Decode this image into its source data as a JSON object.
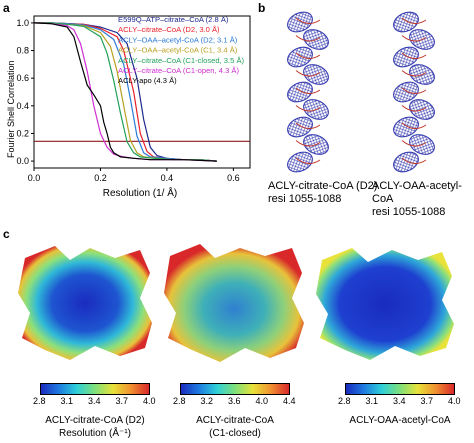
{
  "panels": {
    "a": "a",
    "b": "b",
    "c": "c"
  },
  "chart_data": {
    "type": "line",
    "title": "",
    "xlabel": "Resolution (1/ Å)",
    "ylabel": "Fourier Shell Correlation",
    "xlim": [
      0,
      0.65
    ],
    "ylim": [
      -0.05,
      1.05
    ],
    "xticks": [
      "0.0",
      "0.2",
      "0.4",
      "0.6"
    ],
    "yticks": [
      "0.0",
      "0.2",
      "0.4",
      "0.6",
      "0.8",
      "1.0"
    ],
    "threshold": 0.143,
    "threshold_color": "#8b1a1a",
    "legend_position": "top-right",
    "series": [
      {
        "name": "E599Q–ATP–citrate–CoA (2.8 Å)",
        "color": "#1f2a8c",
        "x": [
          0,
          0.05,
          0.1,
          0.15,
          0.2,
          0.25,
          0.28,
          0.31,
          0.33,
          0.35,
          0.37,
          0.4,
          0.45,
          0.5,
          0.55
        ],
        "y": [
          1.0,
          1.0,
          0.995,
          0.99,
          0.97,
          0.93,
          0.85,
          0.6,
          0.3,
          0.1,
          0.04,
          0.02,
          0.01,
          0.01,
          0.0
        ]
      },
      {
        "name": "ACLY–citrate–CoA (D2, 3.0 Å)",
        "color": "#e8202a",
        "x": [
          0,
          0.05,
          0.1,
          0.15,
          0.2,
          0.25,
          0.27,
          0.3,
          0.32,
          0.34,
          0.36,
          0.4,
          0.45,
          0.5,
          0.55
        ],
        "y": [
          1.0,
          1.0,
          0.995,
          0.99,
          0.96,
          0.9,
          0.8,
          0.5,
          0.2,
          0.07,
          0.03,
          0.02,
          0.01,
          0.01,
          0.0
        ]
      },
      {
        "name": "ACLY–OAA–acetyl-CoA (D2; 3.1 Å)",
        "color": "#2b7bd6",
        "x": [
          0,
          0.05,
          0.1,
          0.15,
          0.2,
          0.24,
          0.27,
          0.29,
          0.31,
          0.33,
          0.35,
          0.4,
          0.45,
          0.5,
          0.55
        ],
        "y": [
          1.0,
          1.0,
          0.995,
          0.985,
          0.95,
          0.88,
          0.7,
          0.45,
          0.18,
          0.06,
          0.03,
          0.02,
          0.01,
          0.01,
          0.0
        ]
      },
      {
        "name": "ACLY–OAA–acetyl-CoA (C1, 3.4 Å)",
        "color": "#b8a020",
        "x": [
          0,
          0.05,
          0.1,
          0.15,
          0.2,
          0.23,
          0.25,
          0.27,
          0.29,
          0.31,
          0.33,
          0.37,
          0.42,
          0.5,
          0.55
        ],
        "y": [
          1.0,
          1.0,
          0.99,
          0.98,
          0.93,
          0.83,
          0.65,
          0.4,
          0.15,
          0.06,
          0.03,
          0.02,
          0.01,
          0.01,
          0.0
        ]
      },
      {
        "name": "ACLY–citrate–CoA (C1-closed, 3.5 Å)",
        "color": "#22a05a",
        "x": [
          0,
          0.05,
          0.1,
          0.15,
          0.2,
          0.22,
          0.24,
          0.26,
          0.28,
          0.3,
          0.32,
          0.36,
          0.42,
          0.5,
          0.55
        ],
        "y": [
          1.0,
          1.0,
          0.99,
          0.975,
          0.9,
          0.78,
          0.58,
          0.35,
          0.14,
          0.06,
          0.03,
          0.02,
          0.01,
          0.01,
          0.0
        ]
      },
      {
        "name": "ACLY–citrate–CoA (C1-open, 4.3 Å)",
        "color": "#d12ed1",
        "x": [
          0,
          0.05,
          0.1,
          0.12,
          0.14,
          0.16,
          0.18,
          0.2,
          0.22,
          0.24,
          0.27,
          0.3,
          0.35,
          0.45,
          0.55
        ],
        "y": [
          1.0,
          0.995,
          0.98,
          0.95,
          0.85,
          0.65,
          0.4,
          0.2,
          0.1,
          0.05,
          0.03,
          0.02,
          0.01,
          0.01,
          0.0
        ]
      },
      {
        "name": "ACLY-apo (4.3 Å)",
        "color": "#000000",
        "x": [
          0,
          0.05,
          0.1,
          0.12,
          0.14,
          0.16,
          0.18,
          0.2,
          0.21,
          0.22,
          0.23,
          0.24,
          0.26,
          0.3,
          0.35,
          0.45,
          0.55
        ],
        "y": [
          1.0,
          0.995,
          0.97,
          0.9,
          0.72,
          0.55,
          0.48,
          0.4,
          0.28,
          0.2,
          0.1,
          0.06,
          0.03,
          0.02,
          0.01,
          0.01,
          0.0
        ]
      }
    ]
  },
  "panel_b": {
    "left_label_line1": "ACLY-citrate-CoA (D2)",
    "left_label_line2": "resi 1055-1088",
    "right_label_line1": "ACLY-OAA-acetyl-CoA",
    "right_label_line2": "resi 1055-1088",
    "density_color": "#3a3fb0"
  },
  "panel_c": {
    "maps": [
      {
        "caption_line1": "ACLY-citrate-CoA (D2)",
        "caption_line2": "Resolution (Å⁻¹)",
        "ticks": [
          "2.8",
          "3.1",
          "3.4",
          "3.7",
          "4.0"
        ]
      },
      {
        "caption_line1": "ACLY-citrate-CoA",
        "caption_line2": "(C1-closed)",
        "ticks": [
          "2.8",
          "3.2",
          "3.6",
          "4.0",
          "4.4"
        ]
      },
      {
        "caption_line1": "ACLY-OAA-acetyl-CoA",
        "caption_line2": "",
        "ticks": [
          "2.8",
          "3.1",
          "3.4",
          "3.7",
          "4.0"
        ]
      }
    ],
    "colormap": [
      "#1a2bbf",
      "#1e7be0",
      "#2fd0d8",
      "#7ee07a",
      "#e8e23a",
      "#f09030",
      "#d8282a"
    ]
  }
}
